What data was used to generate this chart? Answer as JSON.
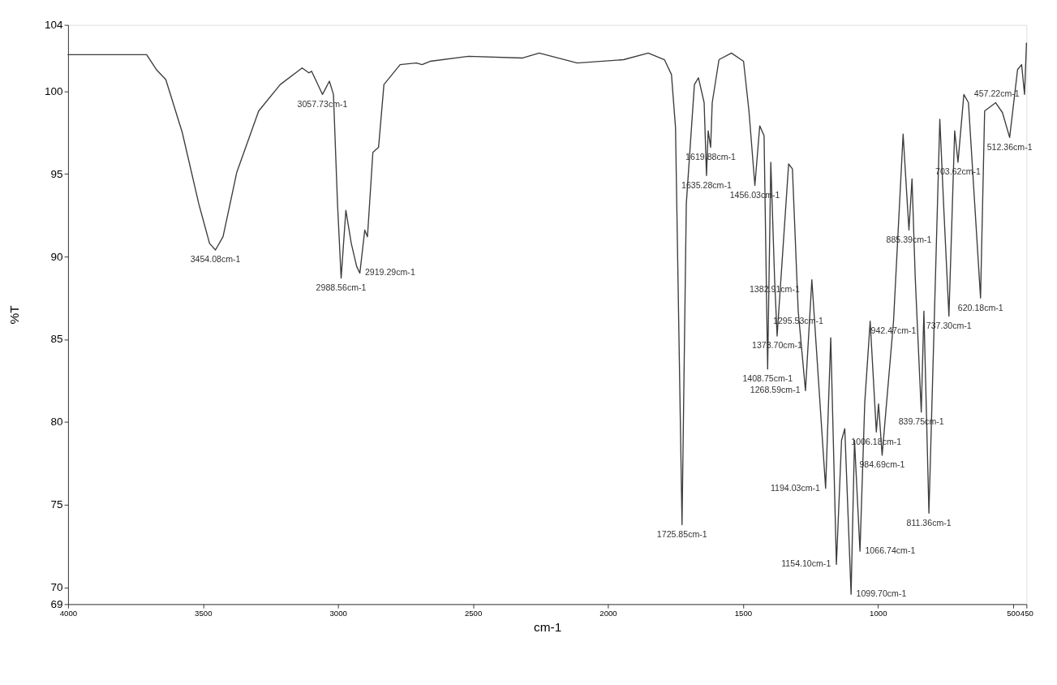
{
  "chart_data": {
    "type": "line",
    "xlabel": "cm-1",
    "ylabel": "%T",
    "xlim": [
      4000,
      450
    ],
    "xticks": [
      4000,
      3500,
      3000,
      2500,
      2000,
      1500,
      1000,
      500,
      450
    ],
    "ylim": [
      69,
      104
    ],
    "yticks": [
      69,
      70,
      75,
      80,
      85,
      90,
      95,
      100,
      104
    ],
    "grid": false,
    "marker": "none",
    "line_style": "solid",
    "series": [
      {
        "color": "#3c3c3c",
        "x": [
          4000,
          3709,
          3673,
          3638,
          3577,
          3516,
          3476,
          3454.08,
          3426,
          3375,
          3294,
          3214,
          3133,
          3108,
          3098,
          3057.73,
          3032,
          3017,
          3002,
          2988.56,
          2971,
          2951,
          2931,
          2919.29,
          2901,
          2891,
          2871,
          2850,
          2830,
          2770,
          2709,
          2689,
          2659,
          2517,
          2316,
          2255,
          2114,
          1942,
          1851,
          1791,
          1765,
          1750,
          1725.85,
          1710,
          1680,
          1665,
          1644,
          1635.28,
          1629,
          1619.88,
          1614,
          1589,
          1543,
          1498,
          1478,
          1456.03,
          1438,
          1422,
          1408.75,
          1397,
          1382.91,
          1373.7,
          1331,
          1317,
          1295.53,
          1268.59,
          1245,
          1194.03,
          1175,
          1154.1,
          1135,
          1123,
          1099.7,
          1087,
          1066.74,
          1049,
          1029,
          1006.18,
          998,
          984.69,
          942.47,
          907,
          885.39,
          874,
          862,
          839.75,
          830,
          811.36,
          771,
          756,
          737.3,
          716,
          703.62,
          682,
          665,
          620.18,
          605,
          564,
          539,
          512.36,
          483,
          468,
          457.22,
          450
        ],
        "values": [
          102.2,
          102.2,
          101.3,
          100.7,
          97.5,
          93.2,
          90.8,
          90.4,
          91.2,
          95.1,
          98.8,
          100.4,
          101.4,
          101.1,
          101.2,
          99.8,
          100.6,
          99.8,
          93.2,
          88.7,
          92.8,
          90.8,
          89.4,
          89.0,
          91.6,
          91.2,
          96.3,
          96.6,
          100.4,
          101.6,
          101.7,
          101.6,
          101.8,
          102.1,
          102.0,
          102.3,
          101.7,
          101.9,
          102.3,
          101.9,
          101.0,
          97.8,
          73.8,
          93.2,
          100.4,
          100.8,
          99.3,
          94.9,
          97.6,
          96.6,
          99.3,
          101.9,
          102.3,
          101.8,
          98.8,
          94.3,
          97.9,
          97.3,
          83.2,
          95.7,
          88.6,
          85.2,
          95.6,
          95.3,
          86.7,
          81.9,
          88.6,
          76.0,
          85.1,
          71.4,
          78.9,
          79.6,
          69.6,
          78.9,
          72.2,
          81.2,
          86.1,
          79.4,
          81.1,
          78.0,
          86.1,
          97.4,
          91.6,
          94.7,
          88.7,
          80.6,
          86.7,
          74.5,
          98.3,
          92.8,
          86.4,
          97.6,
          95.7,
          99.8,
          99.3,
          87.5,
          98.8,
          99.3,
          98.7,
          97.2,
          101.3,
          101.6,
          99.8,
          102.9
        ]
      }
    ],
    "annotations": [
      {
        "text": "3454.08cm-1",
        "x": 3454.08,
        "y": 90.4
      },
      {
        "text": "3057.73cm-1",
        "x": 3057.73,
        "y": 99.8
      },
      {
        "text": "2988.56cm-1",
        "x": 2988.56,
        "y": 88.7
      },
      {
        "text": "2919.29cm-1",
        "x": 2919.29,
        "y": 89.0
      },
      {
        "text": "1725.85cm-1",
        "x": 1725.85,
        "y": 73.8
      },
      {
        "text": "1635.28cm-1",
        "x": 1635.28,
        "y": 94.9
      },
      {
        "text": "1619.88cm-1",
        "x": 1619.88,
        "y": 96.6
      },
      {
        "text": "1456.03cm-1",
        "x": 1456.03,
        "y": 94.3
      },
      {
        "text": "1408.75cm-1",
        "x": 1408.75,
        "y": 83.2
      },
      {
        "text": "1382.91cm-1",
        "x": 1382.91,
        "y": 88.6
      },
      {
        "text": "1373.70cm-1",
        "x": 1373.7,
        "y": 85.2
      },
      {
        "text": "1295.53cm-1",
        "x": 1295.53,
        "y": 86.7
      },
      {
        "text": "1268.59cm-1",
        "x": 1268.59,
        "y": 81.9
      },
      {
        "text": "1194.03cm-1",
        "x": 1194.03,
        "y": 76.0
      },
      {
        "text": "1154.10cm-1",
        "x": 1154.1,
        "y": 71.4
      },
      {
        "text": "1099.70cm-1",
        "x": 1099.7,
        "y": 69.6
      },
      {
        "text": "1066.74cm-1",
        "x": 1066.74,
        "y": 72.2
      },
      {
        "text": "1006.18cm-1",
        "x": 1006.18,
        "y": 79.4
      },
      {
        "text": "984.69cm-1",
        "x": 984.69,
        "y": 78.0
      },
      {
        "text": "942.47cm-1",
        "x": 942.47,
        "y": 86.1
      },
      {
        "text": "885.39cm-1",
        "x": 885.39,
        "y": 91.6
      },
      {
        "text": "839.75cm-1",
        "x": 839.75,
        "y": 80.6
      },
      {
        "text": "811.36cm-1",
        "x": 811.36,
        "y": 74.5
      },
      {
        "text": "737.30cm-1",
        "x": 737.3,
        "y": 86.4
      },
      {
        "text": "703.62cm-1",
        "x": 703.62,
        "y": 95.7
      },
      {
        "text": "620.18cm-1",
        "x": 620.18,
        "y": 87.5
      },
      {
        "text": "512.36cm-1",
        "x": 512.36,
        "y": 97.2
      },
      {
        "text": "457.22cm-1",
        "x": 457.22,
        "y": 99.8
      }
    ]
  }
}
